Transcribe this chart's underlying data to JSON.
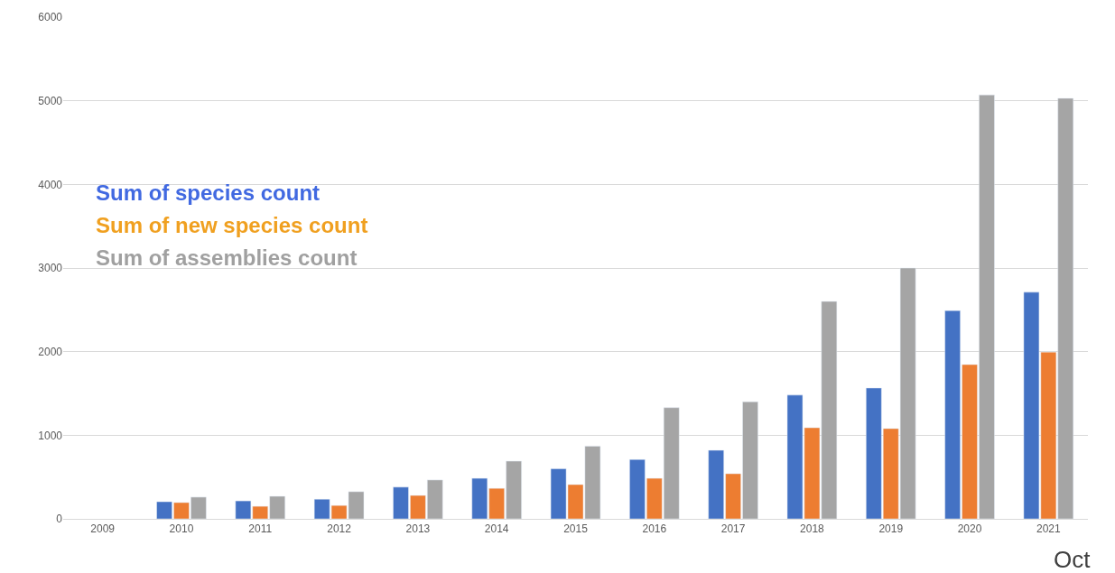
{
  "chart_data": {
    "type": "bar",
    "categories": [
      "2009",
      "2010",
      "2011",
      "2012",
      "2013",
      "2014",
      "2015",
      "2016",
      "2017",
      "2018",
      "2019",
      "2020",
      "2021"
    ],
    "series": [
      {
        "name": "Sum of species count",
        "color": "#4472c4",
        "values": [
          null,
          205,
          215,
          235,
          380,
          485,
          600,
          710,
          820,
          1480,
          1565,
          2490,
          2710
        ]
      },
      {
        "name": "Sum of new species count",
        "color": "#ed7d31",
        "values": [
          null,
          195,
          150,
          160,
          280,
          365,
          410,
          485,
          540,
          1090,
          1080,
          1845,
          1995
        ]
      },
      {
        "name": "Sum of assemblies count",
        "color": "#a5a5a5",
        "values": [
          null,
          260,
          270,
          325,
          465,
          690,
          870,
          1330,
          1400,
          2600,
          3000,
          5070,
          5030
        ]
      }
    ],
    "ylim": [
      0,
      6000
    ],
    "yticks": [
      0,
      1000,
      2000,
      3000,
      4000,
      5000,
      6000
    ],
    "grid": "y",
    "legend": "top left",
    "annotations": [
      "Oct"
    ]
  }
}
